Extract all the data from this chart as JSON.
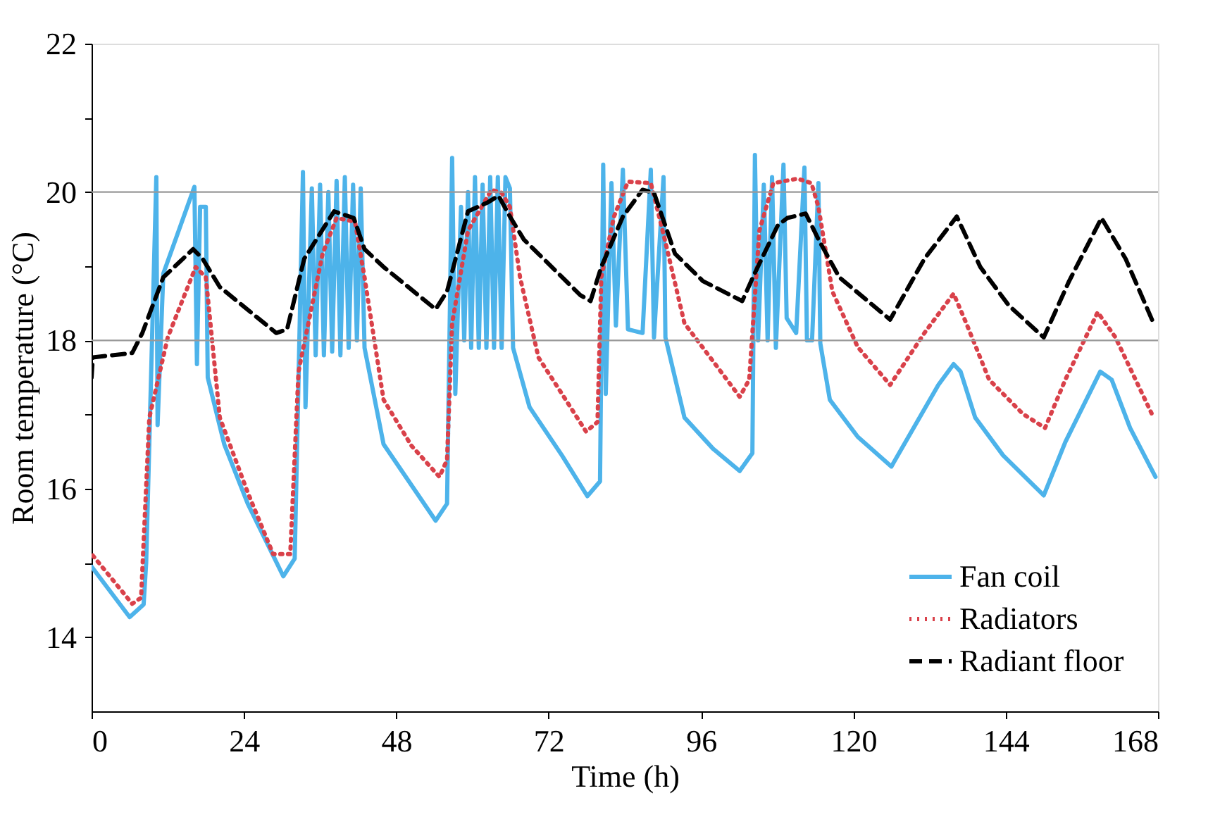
{
  "chart_data": {
    "type": "line",
    "xlabel": "Time (h)",
    "ylabel": "Room temperature (°C)",
    "xlim": [
      0,
      168
    ],
    "xticks": [
      0,
      24,
      48,
      72,
      96,
      120,
      144,
      168
    ],
    "ylim": [
      13,
      22
    ],
    "yticks": [
      14,
      {
        "value": 15,
        "label": null
      },
      16,
      {
        "value": 17,
        "label": null
      },
      18,
      {
        "value": 19,
        "label": null
      },
      20,
      {
        "value": 21,
        "label": null
      },
      22
    ],
    "grid": false,
    "legend": "bottom right",
    "marker": "none",
    "ref_lines": [
      {
        "axis": "y",
        "value": 18,
        "label": null,
        "color": "#999999"
      },
      {
        "axis": "y",
        "value": 20,
        "label": null,
        "color": "#999999"
      }
    ],
    "series": [
      {
        "name": "Fan coil",
        "color": "#4db3ea",
        "line_style": "solid",
        "x": [
          0,
          6,
          8.2,
          8.6,
          10.2,
          10.4,
          11.3,
          16.2,
          16.6,
          17.1,
          18,
          18.3,
          20.9,
          24.6,
          30.2,
          32,
          33.3,
          33.7,
          34.7,
          35.3,
          36.0,
          36.6,
          37.3,
          37.9,
          38.6,
          39.2,
          39.9,
          40.5,
          41.2,
          41.8,
          42.4,
          43,
          46,
          54.2,
          56,
          56.8,
          57.3,
          58.2,
          58.7,
          59.3,
          59.8,
          60.4,
          61.0,
          61.6,
          62.2,
          62.8,
          63.4,
          64.0,
          64.6,
          65.2,
          65.9,
          66.4,
          69,
          74.1,
          78.1,
          80.1,
          80.6,
          81,
          81.9,
          82.6,
          83.7,
          84.5,
          86.8,
          88.1,
          88.6,
          90.1,
          90.4,
          93.4,
          97.9,
          102.1,
          104.1,
          104.5,
          105.0,
          105.9,
          106.5,
          107.2,
          107.8,
          109,
          109.5,
          111,
          112.3,
          112.7,
          113.5,
          114.5,
          114.8,
          116.3,
          120.7,
          126,
          133.4,
          135.8,
          136.9,
          139.2,
          143.6,
          150,
          153.4,
          158.9,
          160.7,
          163.6,
          167.6
        ],
        "values": [
          14.95,
          14.27,
          14.44,
          15.0,
          20.2,
          16.86,
          18.9,
          20.07,
          17.68,
          19.8,
          19.8,
          17.5,
          16.6,
          15.8,
          14.82,
          15.06,
          20.27,
          17.1,
          20.05,
          17.8,
          20.1,
          17.8,
          20.0,
          17.85,
          20.15,
          17.8,
          20.2,
          17.9,
          20.1,
          18.0,
          20.05,
          17.9,
          16.6,
          15.57,
          15.8,
          20.46,
          17.28,
          19.8,
          18.0,
          20.0,
          17.9,
          20.2,
          17.9,
          20.1,
          17.9,
          20.2,
          17.9,
          20.2,
          17.9,
          20.2,
          20.05,
          17.9,
          17.1,
          16.45,
          15.9,
          16.1,
          20.37,
          17.28,
          20.12,
          18.2,
          20.3,
          18.15,
          18.1,
          20.3,
          18.04,
          20.2,
          18.04,
          16.96,
          16.54,
          16.24,
          16.48,
          20.5,
          18.0,
          20.1,
          18.0,
          20.2,
          17.9,
          20.37,
          18.3,
          18.1,
          20.33,
          18.0,
          18.0,
          20.12,
          17.96,
          17.2,
          16.7,
          16.3,
          17.4,
          17.68,
          17.58,
          16.96,
          16.45,
          15.91,
          16.63,
          17.58,
          17.47,
          16.82,
          16.16
        ]
      },
      {
        "name": "Radiators",
        "color": "#d9414a",
        "line_style": "dotted",
        "x": [
          0.2,
          6.4,
          7.8,
          9.1,
          12,
          16.4,
          18,
          20.2,
          24.6,
          28.6,
          31.3,
          32.6,
          36.4,
          38.6,
          41.5,
          43,
          46,
          50.4,
          54.8,
          56,
          56.8,
          59.3,
          63,
          64.6,
          65.9,
          67.5,
          70.4,
          74.1,
          77.9,
          79.7,
          80.3,
          82.3,
          84.5,
          88.1,
          90.3,
          93.4,
          97.9,
          102.1,
          103.6,
          105.2,
          107.4,
          111.2,
          113.4,
          114.5,
          116.7,
          120.7,
          125.8,
          131.2,
          135.8,
          137.8,
          141.4,
          146.7,
          150.2,
          153.4,
          158.5,
          161.3,
          167.3
        ],
        "values": [
          15.1,
          14.45,
          14.53,
          16.96,
          18.04,
          18.99,
          18.85,
          16.96,
          15.95,
          15.12,
          15.12,
          17.58,
          19.17,
          19.65,
          19.6,
          18.85,
          17.2,
          16.58,
          16.16,
          16.39,
          18.23,
          19.48,
          20.03,
          19.99,
          19.8,
          18.85,
          17.77,
          17.28,
          16.77,
          16.9,
          18.85,
          19.67,
          20.14,
          20.12,
          19.36,
          18.23,
          17.72,
          17.24,
          17.47,
          19.48,
          20.12,
          20.18,
          20.12,
          19.8,
          18.66,
          17.91,
          17.4,
          18.1,
          18.63,
          18.23,
          17.47,
          17.01,
          16.82,
          17.47,
          18.38,
          18.04,
          16.96
        ]
      },
      {
        "name": "Radiant floor",
        "color": "#000000",
        "line_style": "dashed",
        "x": [
          0,
          0.2,
          6.4,
          8,
          11.3,
          16,
          17.5,
          20.2,
          29.1,
          30.8,
          33.5,
          38.2,
          41.3,
          43,
          46,
          54.2,
          56,
          59.3,
          62.4,
          64.1,
          65.9,
          68.1,
          77,
          78.6,
          80.3,
          83.7,
          86.8,
          88.6,
          91.9,
          96.3,
          102.5,
          104.5,
          108.1,
          109.6,
          112.5,
          114.7,
          117.8,
          125.8,
          131.2,
          136.3,
          140,
          144.5,
          150,
          154,
          159.1,
          162.9,
          167.3
        ],
        "values": [
          17.5,
          17.77,
          17.83,
          18.1,
          18.85,
          19.23,
          19.1,
          18.72,
          18.1,
          18.15,
          19.1,
          19.74,
          19.65,
          19.23,
          18.99,
          18.42,
          18.66,
          19.74,
          19.86,
          19.95,
          19.67,
          19.36,
          18.61,
          18.53,
          18.99,
          19.67,
          20.03,
          19.99,
          19.17,
          18.8,
          18.53,
          18.91,
          19.55,
          19.65,
          19.71,
          19.33,
          18.85,
          18.28,
          19.1,
          19.67,
          18.99,
          18.47,
          18.04,
          18.8,
          19.65,
          19.1,
          18.23
        ]
      }
    ]
  }
}
